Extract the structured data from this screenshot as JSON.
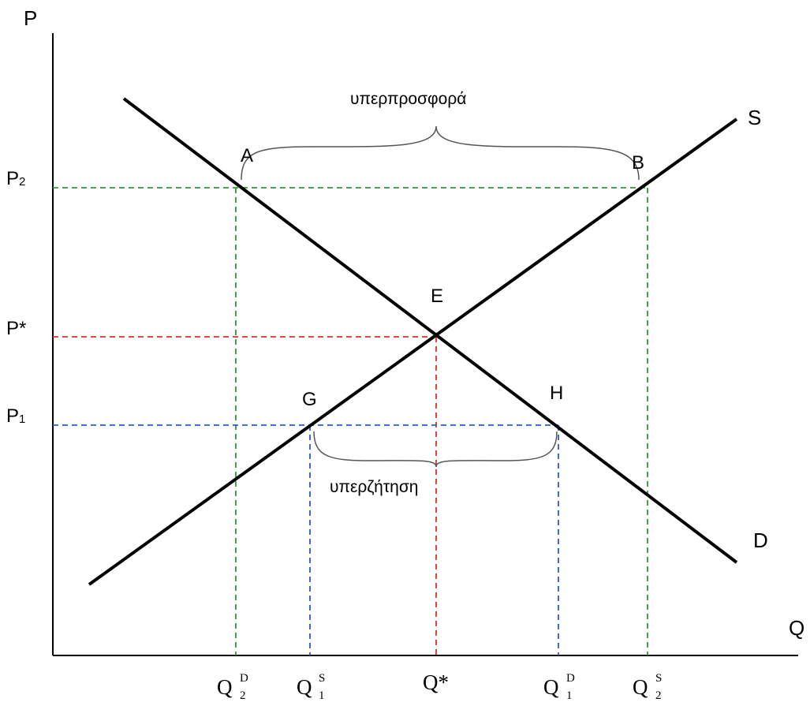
{
  "axes": {
    "y_label": "P",
    "x_label": "Q"
  },
  "curves": {
    "supply": "S",
    "demand": "D"
  },
  "points": {
    "A": "A",
    "B": "B",
    "E": "E",
    "G": "G",
    "H": "H"
  },
  "price_levels": {
    "p2": {
      "base": "P",
      "sub": "2"
    },
    "pstar": "P*",
    "p1": {
      "base": "P",
      "sub": "1"
    }
  },
  "quantities": {
    "q2d": {
      "base": "Q",
      "sub": "2",
      "sup": "D"
    },
    "q1s": {
      "base": "Q",
      "sub": "1",
      "sup": "S"
    },
    "qstar": "Q*",
    "q1d": {
      "base": "Q",
      "sub": "1",
      "sup": "D"
    },
    "q2s": {
      "base": "Q",
      "sub": "2",
      "sup": "S"
    }
  },
  "annotations": {
    "surplus": "υπερπροσφορά",
    "shortage": "υπερζήτηση"
  },
  "colors": {
    "curve": "#000000",
    "p2_guides": "#2e9a3a",
    "equilibrium_guides": "#e0302a",
    "p1_guides": "#2a5fc4",
    "brace": "#555555"
  }
}
